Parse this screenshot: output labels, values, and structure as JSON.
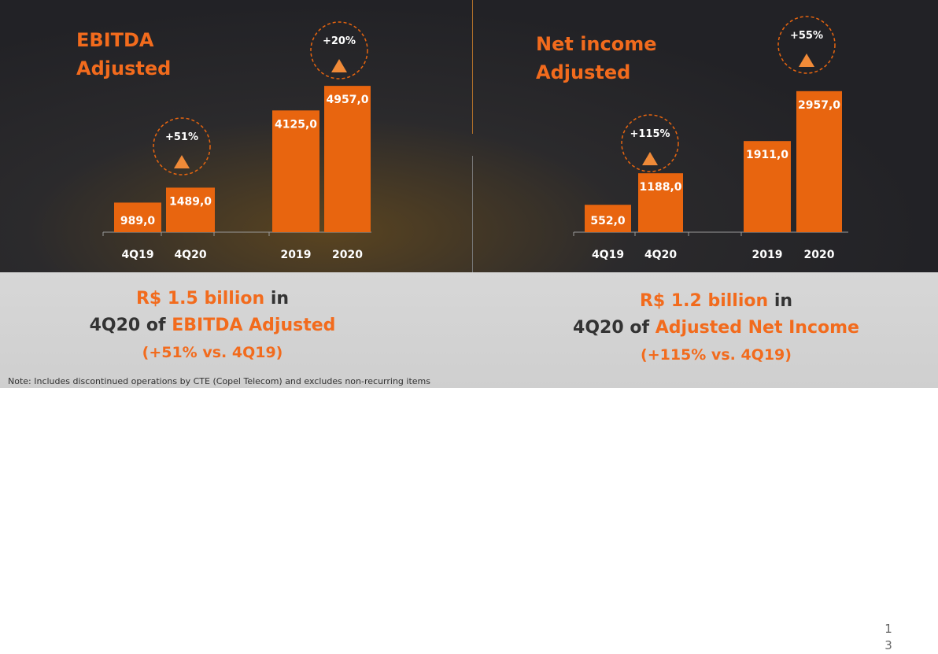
{
  "chart_data": [
    {
      "type": "bar",
      "title": "EBITDA Adjusted",
      "categories": [
        "4Q19",
        "4Q20",
        "2019",
        "2020"
      ],
      "values": [
        989.0,
        1489.0,
        4125.0,
        4957.0
      ],
      "value_labels": [
        "989,0",
        "1489,0",
        "4125,0",
        "4957,0"
      ],
      "growth": [
        {
          "label": "+51%",
          "period": "4Q20 vs 4Q19"
        },
        {
          "label": "+20%",
          "period": "2020 vs 2019"
        }
      ]
    },
    {
      "type": "bar",
      "title": "Net income Adjusted",
      "categories": [
        "4Q19",
        "4Q20",
        "2019",
        "2020"
      ],
      "values": [
        552.0,
        1188.0,
        1911.0,
        2957.0
      ],
      "value_labels": [
        "552,0",
        "1188,0",
        "1911,0",
        "2957,0"
      ],
      "growth": [
        {
          "label": "+115%",
          "period": "4Q20 vs 4Q19"
        },
        {
          "label": "+55%",
          "period": "2020 vs 2019"
        }
      ]
    }
  ],
  "colors": {
    "bar": "#e8650f",
    "accent": "#f26b1d",
    "dark_text": "#333333"
  },
  "titles": {
    "ebitda_line1": "EBITDA",
    "ebitda_line2": "Adjusted",
    "net_line1": "Net income",
    "net_line2": "Adjusted"
  },
  "summary_left": {
    "amount": "R$ 1.5 billion",
    "in_word": "in",
    "period": "4Q20",
    "of_word": "of",
    "metric": "EBITDA Adjusted",
    "growth": "(+51% vs. 4Q19)"
  },
  "summary_right": {
    "amount": "R$ 1.2 billion",
    "in_word": "in",
    "period": "4Q20",
    "of_word": "of",
    "metric": "Adjusted Net Income",
    "growth": "(+115% vs. 4Q19)"
  },
  "note": "Note: Includes discontinued operations by CTE (Copel Telecom) and excludes non-recurring items",
  "page_number": {
    "line1": "1",
    "line2": "3"
  }
}
